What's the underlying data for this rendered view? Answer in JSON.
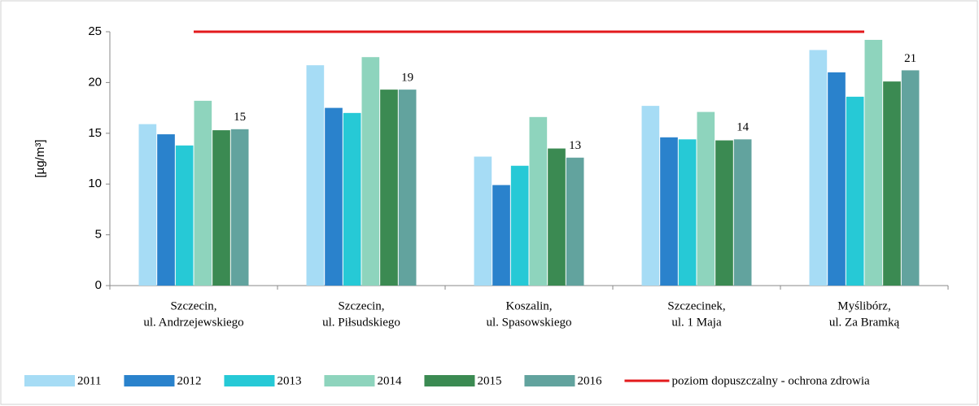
{
  "chart_data": {
    "type": "bar",
    "ylabel": "[µg/m³]",
    "categories": [
      [
        "Szczecin,",
        "ul. Andrzejewskiego"
      ],
      [
        "Szczecin,",
        "ul. Piłsudskiego"
      ],
      [
        "Koszalin,",
        "ul. Spasowskiego"
      ],
      [
        "Szczecinek,",
        "ul. 1 Maja"
      ],
      [
        "Myślibórz,",
        "ul. Za Bramką"
      ]
    ],
    "series": [
      {
        "name": "2011",
        "color": "#a6dcf5",
        "values": [
          15.9,
          21.7,
          12.7,
          17.7,
          23.2
        ]
      },
      {
        "name": "2012",
        "color": "#2a82cc",
        "values": [
          14.9,
          17.5,
          9.9,
          14.6,
          21.0
        ]
      },
      {
        "name": "2013",
        "color": "#26c9d6",
        "values": [
          13.8,
          17.0,
          11.8,
          14.4,
          18.6
        ]
      },
      {
        "name": "2014",
        "color": "#8ed4bd",
        "values": [
          18.2,
          22.5,
          16.6,
          17.1,
          24.2
        ]
      },
      {
        "name": "2015",
        "color": "#3b8a52",
        "values": [
          15.3,
          19.3,
          13.5,
          14.3,
          20.1
        ]
      },
      {
        "name": "2016",
        "color": "#62a39e",
        "values": [
          15.4,
          19.3,
          12.6,
          14.4,
          21.2
        ],
        "value_labels": [
          "15",
          "19",
          "13",
          "14",
          "21"
        ]
      },
      {
        "name": "poziom dopuszczalny - ochrona zdrowia",
        "color": "#e31a1c",
        "type": "line",
        "values": [
          25,
          25,
          25,
          25,
          25
        ]
      }
    ],
    "ylim": [
      0,
      25
    ],
    "yticks": [
      0,
      5,
      10,
      15,
      20,
      25
    ],
    "grid": false,
    "legend": "bottom"
  }
}
